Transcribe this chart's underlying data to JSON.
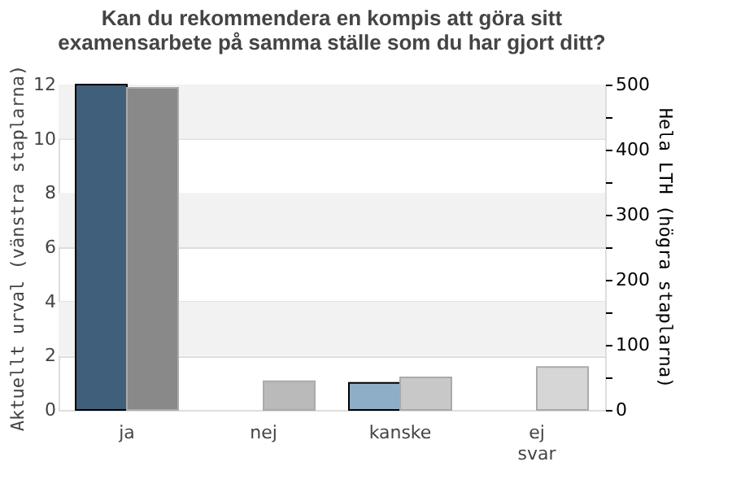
{
  "chart_data": {
    "type": "bar",
    "title": [
      "Kan du rekommendera en kompis att göra sitt",
      "examensarbete på samma ställe som du har gjort ditt?"
    ],
    "categories": [
      "ja",
      "nej",
      "kanske",
      "ej svar"
    ],
    "ylabel": "Aktuellt urval (vänstra staplarna)",
    "y2label": "Hela LTH (högra staplarna)",
    "series": [
      {
        "colors": [
          "#3f5f7a",
          "#3f5f7a",
          "#8eaec8",
          "#3f5f7a"
        ],
        "values": [
          12,
          null,
          1,
          null
        ]
      },
      {
        "axis": "y2",
        "colors": [
          "#898989",
          "#bababa",
          "#c8c8c8",
          "#d6d6d6"
        ],
        "values": [
          495,
          44,
          50,
          66
        ]
      }
    ],
    "ylim": [
      0,
      12
    ],
    "yticks": [
      0,
      2,
      4,
      6,
      8,
      10,
      12
    ],
    "y2lim": [
      0,
      500
    ],
    "y2ticks": [
      0,
      {
        "value": 50,
        "label": null
      },
      100,
      {
        "value": 150,
        "label": null
      },
      200,
      {
        "value": 250,
        "label": null
      },
      300,
      {
        "value": 350,
        "label": null
      },
      400,
      {
        "value": 450,
        "label": null
      },
      500
    ],
    "bands": [
      {
        "axis": "y",
        "from": 2,
        "to": 4,
        "color": "#f2f2f2"
      },
      {
        "axis": "y",
        "from": 6,
        "to": 8,
        "color": "#f2f2f2"
      },
      {
        "axis": "y",
        "from": 10,
        "to": 12,
        "color": "#f2f2f2"
      }
    ],
    "grid": "y"
  }
}
